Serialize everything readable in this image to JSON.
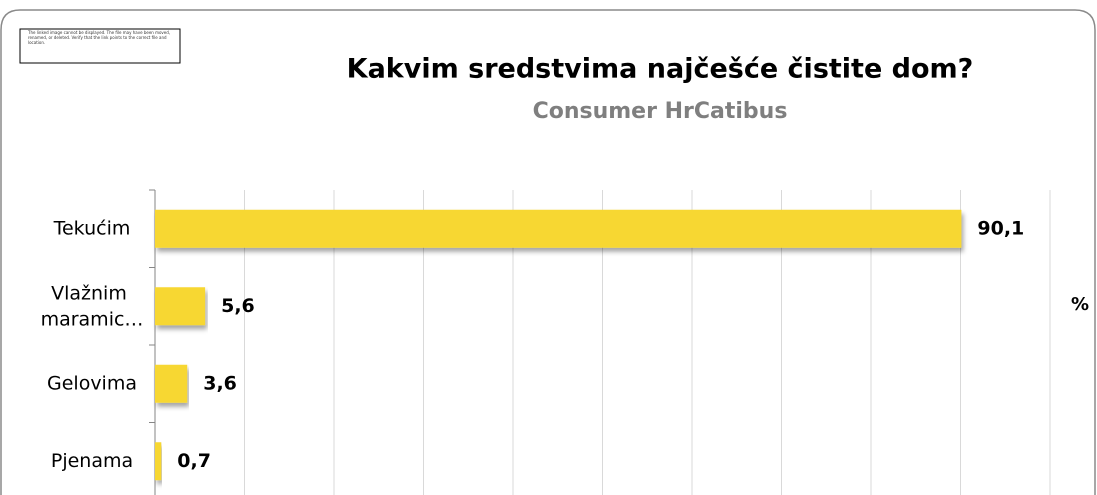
{
  "chart_data": {
    "type": "bar",
    "orientation": "horizontal",
    "title": "Kakvim sredstvima najčešće čistite dom?",
    "subtitle": "Consumer HrCatibus",
    "x_axis_label": "%",
    "image_placeholder": "The linked image cannot be displayed. The file may have been moved, renamed, or deleted. Verify that the link points to the correct file and location.",
    "categories": [
      "Tekućim",
      "Vlažnim maramic…",
      "Gelovima",
      "Pjenama"
    ],
    "values": [
      90.1,
      5.6,
      3.6,
      0.7
    ],
    "value_labels": [
      "90,1",
      "5,6",
      "3,6",
      "0,7"
    ],
    "color": "#f7d731",
    "xlim": [
      0,
      100
    ],
    "xticks": [
      0,
      10,
      20,
      30,
      40,
      50,
      60,
      70,
      80,
      90,
      100
    ],
    "grid": true
  }
}
